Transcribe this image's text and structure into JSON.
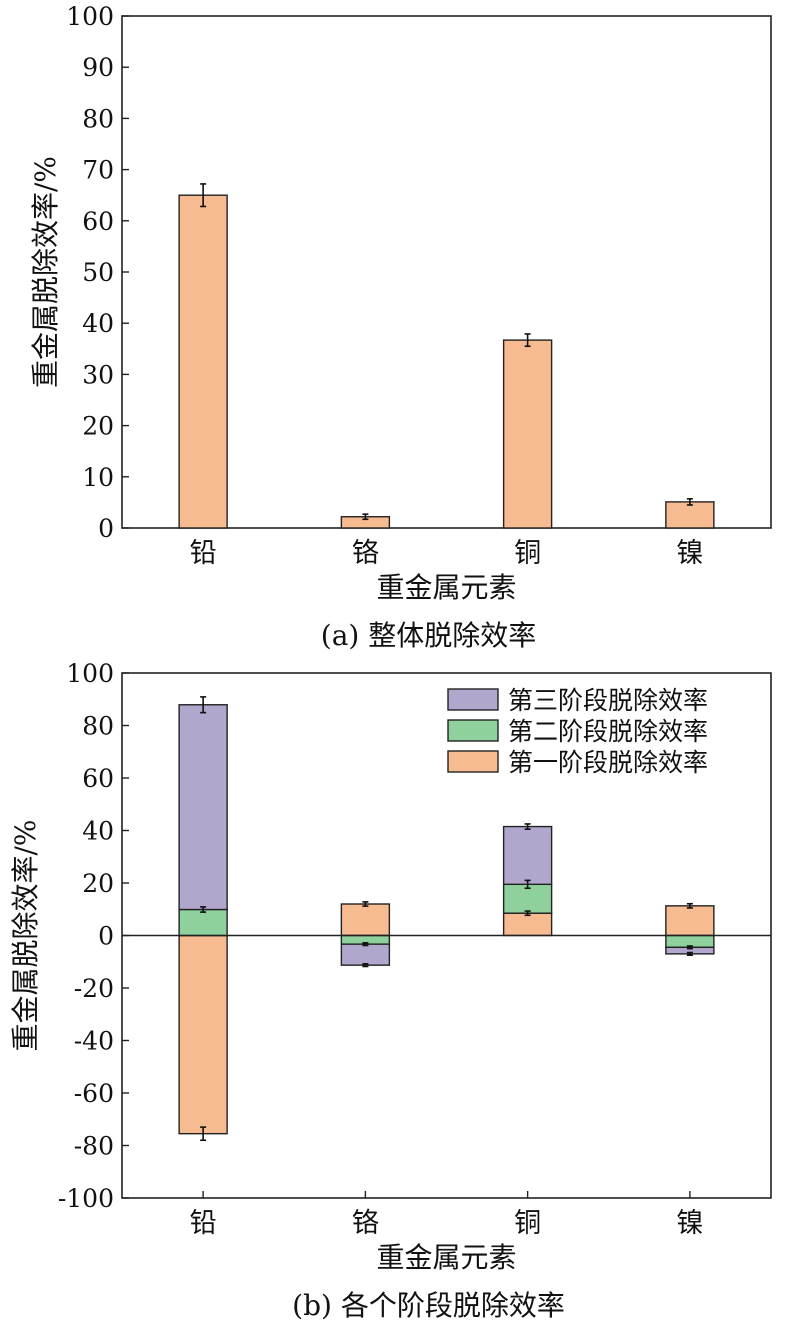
{
  "chart_data": [
    {
      "type": "bar",
      "title": "",
      "caption": "(a) 整体脱除效率",
      "xlabel": "重金属元素",
      "ylabel": "重金属脱除效率/%",
      "categories": [
        "铅",
        "铬",
        "铜",
        "镍"
      ],
      "ylim": [
        0,
        100
      ],
      "yticks": [
        0,
        10,
        20,
        30,
        40,
        50,
        60,
        70,
        80,
        90,
        100
      ],
      "grid": false,
      "series": [
        {
          "color": "#F7BB92",
          "values": [
            65,
            2.2,
            36.7,
            5.1
          ],
          "errors": [
            2.2,
            0.5,
            1.2,
            0.6
          ]
        }
      ]
    },
    {
      "type": "bar",
      "stacked": true,
      "title": "",
      "caption": "(b) 各个阶段脱除效率",
      "xlabel": "重金属元素",
      "ylabel": "重金属脱除效率/%",
      "categories": [
        "铅",
        "铬",
        "铜",
        "镍"
      ],
      "ylim": [
        -100,
        100
      ],
      "yticks": [
        -100,
        -80,
        -60,
        -40,
        -20,
        0,
        20,
        40,
        60,
        80,
        100
      ],
      "grid": false,
      "legend_position": "top-right",
      "series": [
        {
          "name": "第一阶段脱除效率",
          "color": "#F7BB92",
          "values": [
            -75.5,
            12.0,
            8.5,
            11.3
          ],
          "errors": [
            2.5,
            0.8,
            0.8,
            0.8
          ]
        },
        {
          "name": "第二阶段脱除效率",
          "color": "#8ED19C",
          "values": [
            9.9,
            -3.3,
            11.0,
            -4.5
          ],
          "errors": [
            1.0,
            0.5,
            1.5,
            0.5
          ]
        },
        {
          "name": "第三阶段脱除效率",
          "color": "#B1A6CC",
          "values": [
            78.0,
            -8.0,
            22.0,
            -2.5
          ],
          "errors": [
            3.0,
            0.5,
            1.0,
            0.5
          ]
        }
      ],
      "legend_order": [
        "第三阶段脱除效率",
        "第二阶段脱除效率",
        "第一阶段脱除效率"
      ]
    }
  ]
}
